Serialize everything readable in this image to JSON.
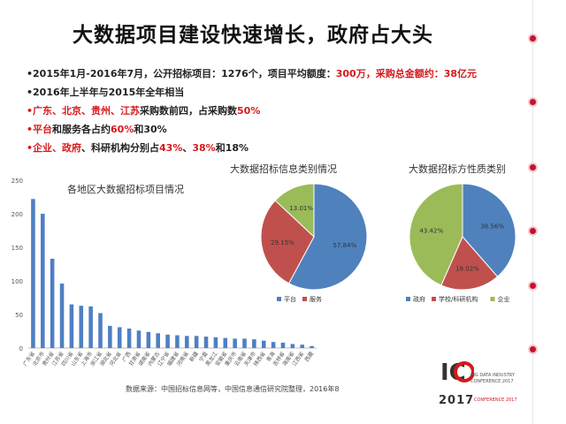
{
  "slide": {
    "title": "大数据项目建设快速增长，政府占大头",
    "bullets": [
      [
        {
          "text": "•2015年1月-2016年7月，公开招标项目：1276个，项目平均额度：",
          "red": false
        },
        {
          "text": "300万，采购总金额约：38亿元",
          "red": true
        }
      ],
      [
        {
          "text": "•2016年上半年与2015年全年相当",
          "red": false
        }
      ],
      [
        {
          "text": "•广东、北京、贵州、江苏",
          "red": true
        },
        {
          "text": "采购数前四，占采购数",
          "red": false
        },
        {
          "text": "50%",
          "red": true
        }
      ],
      [
        {
          "text": "•平台",
          "red": true
        },
        {
          "text": "和服务各占约",
          "red": false
        },
        {
          "text": "60%",
          "red": true
        },
        {
          "text": "和30%",
          "red": false
        }
      ],
      [
        {
          "text": "•企业、政府",
          "red": true
        },
        {
          "text": "、科研机构分别占",
          "red": false
        },
        {
          "text": "43%",
          "red": true
        },
        {
          "text": "、",
          "red": false
        },
        {
          "text": "38%",
          "red": true
        },
        {
          "text": "和18%",
          "red": false
        }
      ]
    ],
    "source": "数据来源：中国招标信息网等，中国信息通信研究院整理，2016年8",
    "logo": {
      "letters": "IC",
      "line1": "BIG DATA INDUSTRY",
      "line2": "CONFERENCE 2017",
      "year": "2017",
      "line3": "CONFERENCE 2017"
    }
  },
  "chart_data": [
    {
      "type": "bar",
      "title": "各地区大数据招标项目情况",
      "categories": [
        "广东省",
        "北京市",
        "贵州省",
        "江苏省",
        "四川省",
        "山东省",
        "上海市",
        "浙江省",
        "湖北省",
        "河北省",
        "广西",
        "甘肃省",
        "湖南省",
        "内蒙古",
        "辽宁省",
        "福建省",
        "河南省",
        "新疆",
        "宁夏",
        "黑龙江",
        "安徽省",
        "重庆市",
        "云南省",
        "天津市",
        "陕西省",
        "青海",
        "吉林省",
        "海南省",
        "江西省",
        "西藏"
      ],
      "values": [
        222,
        200,
        133,
        96,
        65,
        63,
        62,
        52,
        33,
        31,
        29,
        26,
        24,
        22,
        20,
        19,
        18,
        18,
        17,
        16,
        15,
        14,
        14,
        13,
        11,
        9,
        8,
        6,
        5,
        3
      ],
      "yticks": [
        "0",
        "50",
        "100",
        "150",
        "200",
        "250"
      ],
      "ylim": [
        0,
        250
      ],
      "color": "#4f7fc4",
      "grid": false
    },
    {
      "type": "pie",
      "title": "大数据招标信息类别情况",
      "slices": [
        {
          "name": "平台",
          "value": 57.84,
          "label": "57.84%",
          "color": "#4f81bd"
        },
        {
          "name": "服务",
          "value": 29.15,
          "label": "29.15%",
          "color": "#c0504d"
        },
        {
          "name": "",
          "value": 13.01,
          "label": "13.01%",
          "color": "#9bbb59"
        }
      ],
      "legend": [
        "平台",
        "服务"
      ],
      "legend_position": "bottom"
    },
    {
      "type": "pie",
      "title": "大数据招标方性质类别",
      "slices": [
        {
          "name": "政府",
          "value": 38.56,
          "label": "38.56%",
          "color": "#4f81bd"
        },
        {
          "name": "学校/科研机构",
          "value": 18.02,
          "label": "18.02%",
          "color": "#c0504d"
        },
        {
          "name": "企业",
          "value": 43.42,
          "label": "43.42%",
          "color": "#9bbb59"
        }
      ],
      "legend": [
        "政府",
        "学校/科研机构",
        "企业"
      ],
      "legend_position": "bottom"
    }
  ]
}
